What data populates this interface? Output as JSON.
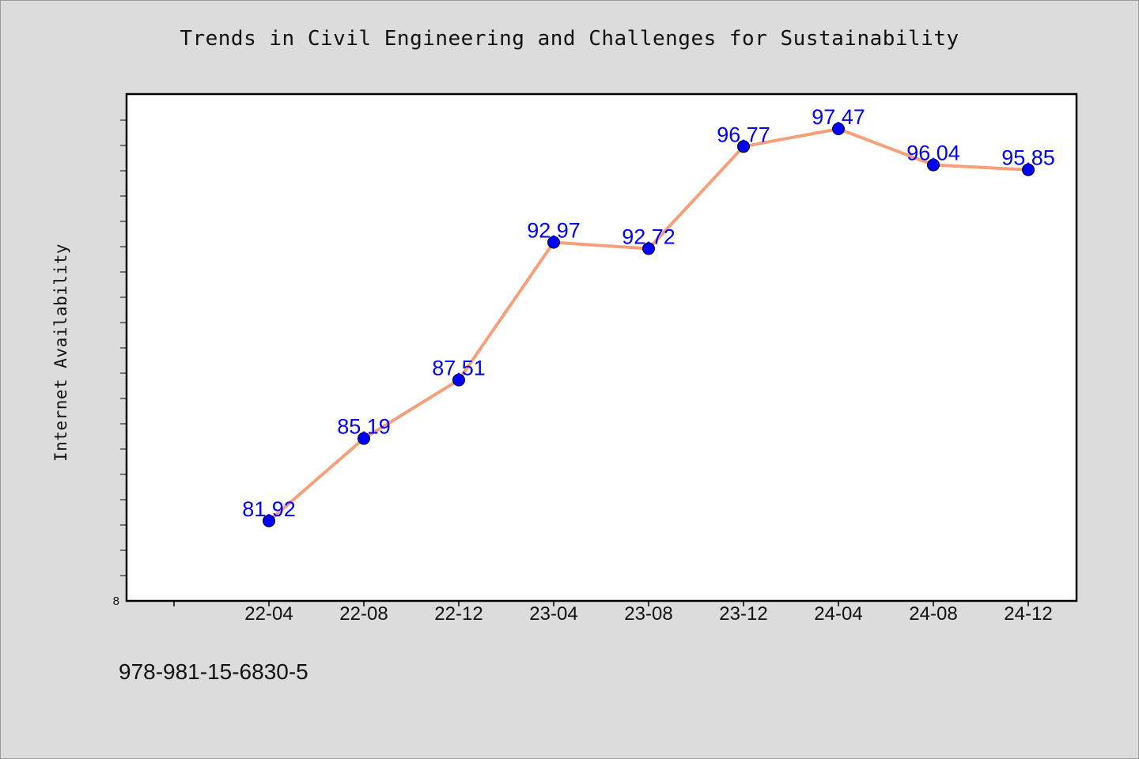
{
  "chart_data": {
    "type": "line",
    "title": "Trends in Civil Engineering and Challenges for Sustainability",
    "ylabel": "Internet Availability",
    "xlabel": "",
    "categories": [
      "22-04",
      "22-08",
      "22-12",
      "23-04",
      "23-08",
      "23-12",
      "24-04",
      "24-08",
      "24-12"
    ],
    "series": [
      {
        "values": [
          81.92,
          85.19,
          87.51,
          92.97,
          92.72,
          96.77,
          97.47,
          96.04,
          95.85
        ]
      }
    ],
    "data_labels": [
      "81.92",
      "85.19",
      "87.51",
      "92.97",
      "92.72",
      "96.77",
      "97.47",
      "96.04",
      "95.85"
    ],
    "ylim": [
      78.75,
      98.85
    ],
    "ytick_labels": [
      "8"
    ],
    "grid": false,
    "line_color": "#f5a07a",
    "marker_color": "#0000ff",
    "label_color": "#0000ff"
  },
  "footer_text": "978-981-15-6830-5"
}
